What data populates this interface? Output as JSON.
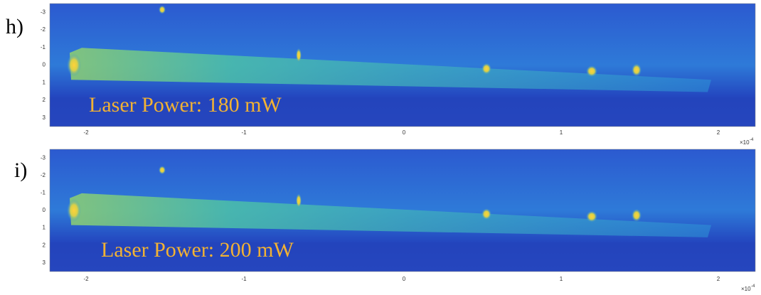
{
  "panels": [
    {
      "label": "h)",
      "annotation": "Laser Power: 180 mW",
      "x_ticks": [
        "-2",
        "-1",
        "0",
        "1",
        "2"
      ],
      "y_ticks": [
        "-3",
        "-2",
        "-1",
        "0",
        "1",
        "2",
        "3"
      ],
      "x_multiplier": "×10",
      "x_exponent": "-4"
    },
    {
      "label": "i)",
      "annotation": "Laser Power: 200 mW",
      "x_ticks": [
        "-2",
        "-1",
        "0",
        "1",
        "2"
      ],
      "y_ticks": [
        "-3",
        "-2",
        "-1",
        "0",
        "1",
        "2",
        "3"
      ],
      "x_multiplier": "×10",
      "x_exponent": "-4"
    }
  ]
}
